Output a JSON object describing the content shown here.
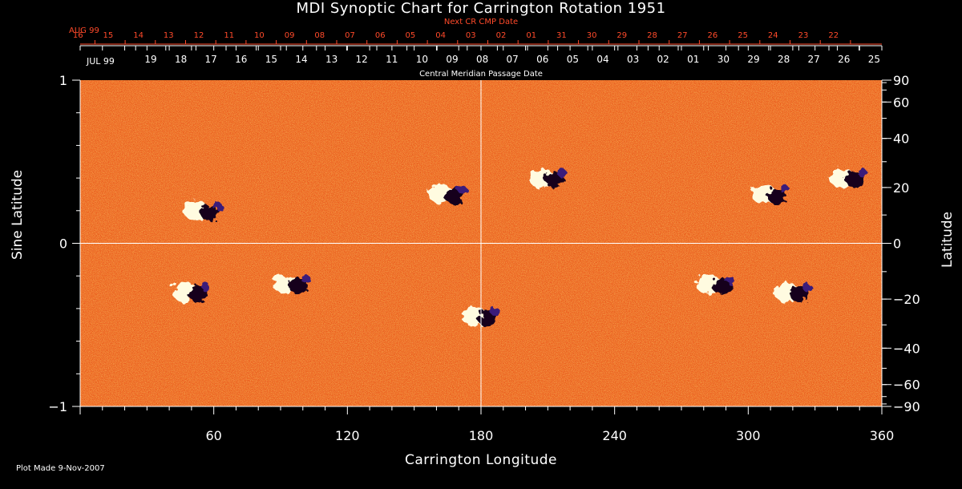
{
  "title": "MDI Synoptic Chart for Carrington Rotation 1951",
  "footer": "Plot Made  9-Nov-2007",
  "colors": {
    "background": "#000000",
    "axes": "#ffffff",
    "next_cr_text": "#ff4a2a",
    "map_base": "#e8541a"
  },
  "chart_data": {
    "type": "heatmap",
    "title": "MDI Synoptic Chart for Carrington Rotation 1951",
    "xlabel": "Carrington Longitude",
    "ylabel": "Sine Latitude",
    "y2label": "Latitude",
    "xlim": [
      0,
      360
    ],
    "ylim": [
      -1,
      1
    ],
    "x_ticks": [
      60,
      120,
      180,
      240,
      300,
      360
    ],
    "x_tick_labels": [
      "60",
      "120",
      "180",
      "240",
      "300",
      "360"
    ],
    "y_ticks": [
      -1,
      0,
      1
    ],
    "y_tick_labels": [
      "−1",
      "0",
      "1"
    ],
    "y2_ticks_deg": [
      90,
      60,
      40,
      20,
      0,
      -20,
      -40,
      -60,
      -90
    ],
    "y2_tick_labels": [
      "90",
      "60",
      "40",
      "20",
      "0",
      "−20",
      "−40",
      "−60",
      "−90"
    ],
    "reference_lines": {
      "vertical_longitude": 180,
      "horizontal_sine_latitude": 0
    },
    "top_axis_next_cr": {
      "label": "Next CR CMP Date",
      "month_label": "AUG 99",
      "dates": [
        "16",
        "15",
        "14",
        "13",
        "12",
        "11",
        "10",
        "09",
        "08",
        "07",
        "06",
        "05",
        "04",
        "03",
        "02",
        "01",
        "31",
        "30",
        "29",
        "28",
        "27",
        "26",
        "25",
        "24",
        "23",
        "22"
      ]
    },
    "top_axis_cmp": {
      "label": "Central Meridian Passage Date",
      "month_label": "JUL 99",
      "dates": [
        "19",
        "18",
        "17",
        "16",
        "15",
        "14",
        "13",
        "12",
        "11",
        "10",
        "09",
        "08",
        "07",
        "06",
        "05",
        "04",
        "03",
        "02",
        "01",
        "30",
        "29",
        "28",
        "27",
        "26",
        "25"
      ]
    },
    "active_regions": [
      {
        "lon": 55,
        "lat_sin": 0.2,
        "polarity": "bipolar"
      },
      {
        "lon": 165,
        "lat_sin": 0.3,
        "polarity": "bipolar"
      },
      {
        "lon": 210,
        "lat_sin": 0.4,
        "polarity": "bipolar"
      },
      {
        "lon": 310,
        "lat_sin": 0.3,
        "polarity": "bipolar"
      },
      {
        "lon": 345,
        "lat_sin": 0.4,
        "polarity": "bipolar"
      },
      {
        "lon": 50,
        "lat_sin": -0.3,
        "polarity": "bipolar"
      },
      {
        "lon": 95,
        "lat_sin": -0.25,
        "polarity": "bipolar"
      },
      {
        "lon": 180,
        "lat_sin": -0.45,
        "polarity": "bipolar"
      },
      {
        "lon": 285,
        "lat_sin": -0.25,
        "polarity": "bipolar"
      },
      {
        "lon": 320,
        "lat_sin": -0.3,
        "polarity": "bipolar"
      }
    ]
  }
}
